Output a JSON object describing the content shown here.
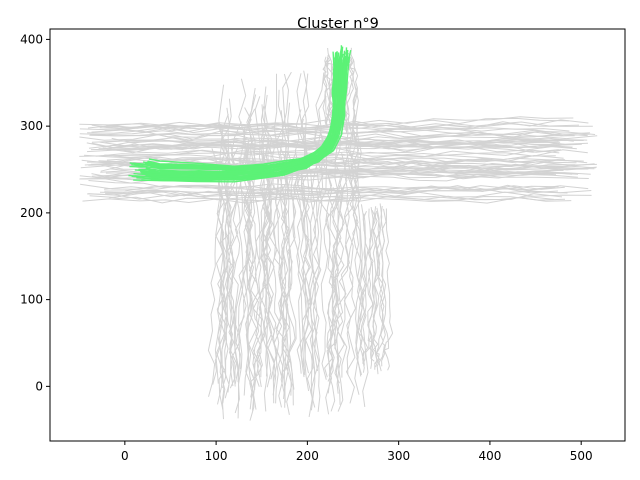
{
  "chart_data": {
    "type": "line",
    "title": "Cluster n°9",
    "xlabel": "",
    "ylabel": "",
    "xlim": [
      -82,
      548
    ],
    "ylim": [
      -63,
      412
    ],
    "xticks": [
      0,
      100,
      200,
      300,
      400,
      500
    ],
    "yticks": [
      0,
      100,
      200,
      300,
      400
    ],
    "grid": false,
    "legend": "none",
    "colors": {
      "background_series": "#d3d3d3",
      "highlight_series": "#5cf277",
      "axes": "#000000"
    },
    "background_series": [
      {
        "pattern": "horizontal band, west to east",
        "x_range": [
          -52,
          518
        ],
        "y_range": [
          205,
          312
        ]
      },
      {
        "pattern": "vertical band, north to south",
        "x_range": [
          90,
          260
        ],
        "y_range": [
          -42,
          365
        ]
      },
      {
        "pattern": "vertical band, near x≈275",
        "x_range": [
          255,
          292
        ],
        "y_range": [
          10,
          215
        ]
      },
      {
        "pattern": "north approach",
        "x_range": [
          215,
          258
        ],
        "y_range": [
          290,
          392
        ]
      }
    ],
    "highlight_series": {
      "pattern": "cluster 9 trajectories: west end to north end",
      "path": [
        {
          "x": 8,
          "y": 250
        },
        {
          "x": 40,
          "y": 248
        },
        {
          "x": 80,
          "y": 247
        },
        {
          "x": 120,
          "y": 246
        },
        {
          "x": 150,
          "y": 248
        },
        {
          "x": 175,
          "y": 252
        },
        {
          "x": 195,
          "y": 257
        },
        {
          "x": 210,
          "y": 264
        },
        {
          "x": 222,
          "y": 275
        },
        {
          "x": 230,
          "y": 292
        },
        {
          "x": 234,
          "y": 315
        },
        {
          "x": 235,
          "y": 340
        },
        {
          "x": 236,
          "y": 365
        },
        {
          "x": 238,
          "y": 392
        }
      ]
    }
  }
}
